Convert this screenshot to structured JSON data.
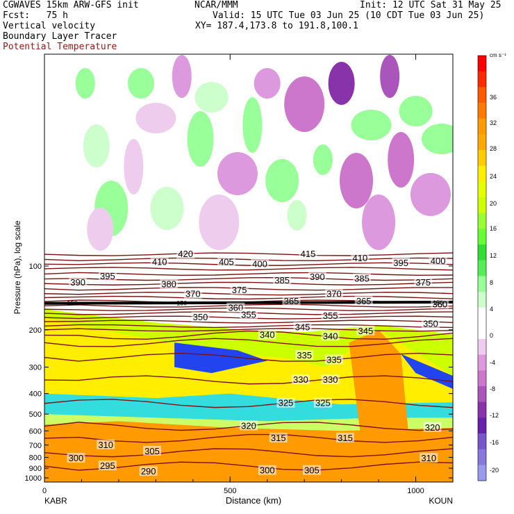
{
  "header": {
    "left_line1": "CGWAVES 15km ARW-GFS init",
    "left_line2": "Fcst:   75 h",
    "center_line1": "NCAR/MMM",
    "right_line1": "Init: 12 UTC Sat 31 May 25",
    "valid_line": "Valid: 15 UTC Tue 03 Jun 25 (10 CDT Tue 03 Jun 25)",
    "xy_line": "XY= 187.4,173.8 to 191.8,100.1",
    "field1": "Vertical velocity",
    "field2": "Boundary Layer Tracer",
    "field3": "Potential Temperature"
  },
  "colors": {
    "theta_contour": "#7a1010",
    "field3_text": "#8b1a1a"
  },
  "chart_data": {
    "type": "heatmap",
    "xlabel": "Distance (km)",
    "ylabel": "Pressure (hPa), log scale",
    "x_ticks": [
      "0",
      "500",
      "1000"
    ],
    "x_tick_values": [
      0,
      500,
      1000
    ],
    "xlim": [
      0,
      1100
    ],
    "y_ticks": [
      "100",
      "200",
      "300",
      "400",
      "500",
      "600",
      "700",
      "800",
      "900",
      "1000"
    ],
    "y_tick_values": [
      100,
      200,
      300,
      400,
      500,
      600,
      700,
      800,
      900,
      1000
    ],
    "y_scale": "log",
    "left_station": "KABR",
    "right_station": "KOUN",
    "colorbar": {
      "unit": "cm s⁻¹",
      "labels": [
        "36",
        "32",
        "28",
        "24",
        "20",
        "16",
        "12",
        "8",
        "4",
        "0",
        "-4",
        "-8",
        "-12",
        "-16",
        "-20"
      ],
      "colors": [
        "#ff0000",
        "#ff2a00",
        "#ff5a00",
        "#ff7a00",
        "#ff9a00",
        "#ffaa00",
        "#ffcc00",
        "#ffee00",
        "#e6ff00",
        "#ccff00",
        "#99ff33",
        "#66ff33",
        "#33dd33",
        "#55ee55",
        "#99ff99",
        "#ccffcc",
        "#ffffff",
        "#ffffff",
        "#eeccee",
        "#dd99dd",
        "#cc77cc",
        "#aa55bb",
        "#8833aa",
        "#6622aa",
        "#7755cc",
        "#8877dd",
        "#9999ee"
      ]
    },
    "theta_labels": [
      {
        "text": "420",
        "x": 380,
        "p": 88
      },
      {
        "text": "415",
        "x": 710,
        "p": 88
      },
      {
        "text": "410",
        "x": 310,
        "p": 96
      },
      {
        "text": "405",
        "x": 490,
        "p": 96
      },
      {
        "text": "400",
        "x": 580,
        "p": 98
      },
      {
        "text": "410",
        "x": 850,
        "p": 92
      },
      {
        "text": "395",
        "x": 960,
        "p": 97
      },
      {
        "text": "400",
        "x": 1060,
        "p": 95
      },
      {
        "text": "390",
        "x": 90,
        "p": 120
      },
      {
        "text": "395",
        "x": 170,
        "p": 112
      },
      {
        "text": "380",
        "x": 335,
        "p": 122
      },
      {
        "text": "385",
        "x": 640,
        "p": 117
      },
      {
        "text": "390",
        "x": 735,
        "p": 113
      },
      {
        "text": "385",
        "x": 855,
        "p": 115
      },
      {
        "text": "375",
        "x": 1020,
        "p": 120
      },
      {
        "text": "370",
        "x": 400,
        "p": 136
      },
      {
        "text": "375",
        "x": 525,
        "p": 130
      },
      {
        "text": "370",
        "x": 780,
        "p": 136
      },
      {
        "text": "365",
        "x": 665,
        "p": 147
      },
      {
        "text": "365",
        "x": 860,
        "p": 147
      },
      {
        "text": "360",
        "x": 515,
        "p": 158
      },
      {
        "text": "360",
        "x": 1065,
        "p": 152
      },
      {
        "text": "355",
        "x": 550,
        "p": 170
      },
      {
        "text": "355",
        "x": 770,
        "p": 172
      },
      {
        "text": "350",
        "x": 420,
        "p": 175
      },
      {
        "text": "350",
        "x": 1040,
        "p": 188
      },
      {
        "text": "345",
        "x": 695,
        "p": 195
      },
      {
        "text": "345",
        "x": 865,
        "p": 203
      },
      {
        "text": "340",
        "x": 600,
        "p": 212
      },
      {
        "text": "340",
        "x": 770,
        "p": 215
      },
      {
        "text": "335",
        "x": 700,
        "p": 265
      },
      {
        "text": "335",
        "x": 780,
        "p": 278
      },
      {
        "text": "330",
        "x": 690,
        "p": 345
      },
      {
        "text": "330",
        "x": 770,
        "p": 345
      },
      {
        "text": "325",
        "x": 650,
        "p": 445
      },
      {
        "text": "325",
        "x": 750,
        "p": 445
      },
      {
        "text": "320",
        "x": 550,
        "p": 570
      },
      {
        "text": "320",
        "x": 1045,
        "p": 580
      },
      {
        "text": "315",
        "x": 630,
        "p": 650
      },
      {
        "text": "315",
        "x": 810,
        "p": 650
      },
      {
        "text": "310",
        "x": 165,
        "p": 700
      },
      {
        "text": "310",
        "x": 1035,
        "p": 810
      },
      {
        "text": "305",
        "x": 290,
        "p": 750
      },
      {
        "text": "300",
        "x": 85,
        "p": 810
      },
      {
        "text": "295",
        "x": 170,
        "p": 880
      },
      {
        "text": "290",
        "x": 280,
        "p": 935
      },
      {
        "text": "300",
        "x": 600,
        "p": 925
      },
      {
        "text": "305",
        "x": 720,
        "p": 925
      }
    ],
    "tropopause_labels": [
      {
        "text": "150",
        "x": 75,
        "p": 150
      },
      {
        "text": "150",
        "x": 370,
        "p": 150
      },
      {
        "text": "150",
        "x": 1060,
        "p": 149
      }
    ]
  }
}
